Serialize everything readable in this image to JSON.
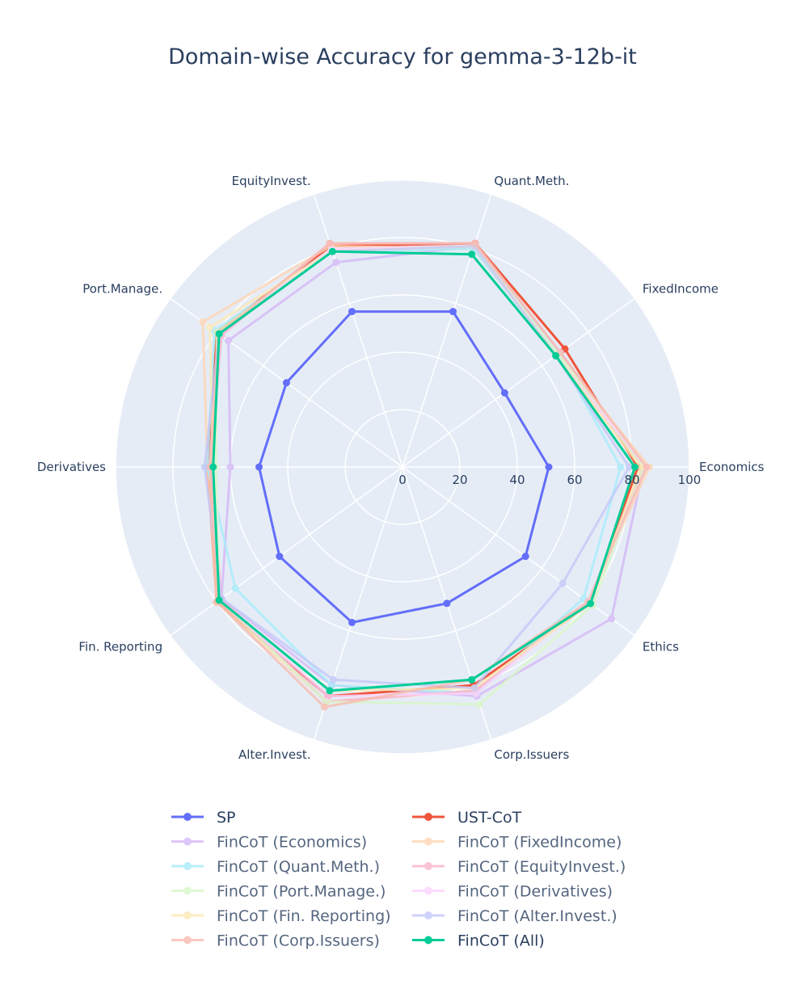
{
  "chart_data": {
    "type": "radar",
    "title": "Domain-wise Accuracy for gemma-3-12b-it",
    "categories": [
      "Economics",
      "FixedIncome",
      "Quant.Meth.",
      "EquityInvest.",
      "Port.Manage.",
      "Derivatives",
      "Fin. Reporting",
      "Alter.Invest.",
      "Corp.Issuers",
      "Ethics"
    ],
    "radial_range": [
      0,
      100
    ],
    "radial_ticks": [
      "0",
      "20",
      "40",
      "60",
      "80",
      "100"
    ],
    "legend_placement": "bottom",
    "series": [
      {
        "name": "SP",
        "color": "#636efa",
        "opacity": 1.0,
        "values": [
          51,
          44,
          57,
          57,
          50,
          50,
          53,
          57,
          50,
          53
        ]
      },
      {
        "name": "UST-CoT",
        "color": "#ef553b",
        "opacity": 1.0,
        "values": [
          82,
          70,
          82,
          81,
          80,
          68,
          80,
          84,
          80,
          81
        ]
      },
      {
        "name": "FinCoT (Economics)",
        "color": "#d6b8f7",
        "opacity": 0.8,
        "values": [
          84,
          68,
          81,
          75,
          75,
          60,
          78,
          80,
          84,
          90
        ]
      },
      {
        "name": "FinCoT (FixedIncome)",
        "color": "#ffd6b3",
        "opacity": 0.8,
        "values": [
          86,
          67,
          80,
          81,
          86,
          68,
          80,
          86,
          82,
          80
        ]
      },
      {
        "name": "FinCoT (Quant.Meth.)",
        "color": "#a8ecfb",
        "opacity": 0.8,
        "values": [
          76,
          67,
          80,
          79,
          81,
          68,
          72,
          80,
          83,
          78
        ]
      },
      {
        "name": "FinCoT (EquityInvest.)",
        "color": "#f9b3cd",
        "opacity": 0.8,
        "values": [
          84,
          66,
          82,
          82,
          78,
          67,
          78,
          86,
          82,
          80
        ]
      },
      {
        "name": "FinCoT (Port.Manage.)",
        "color": "#d9f7c9",
        "opacity": 0.8,
        "values": [
          84,
          67,
          81,
          80,
          80,
          65,
          79,
          86,
          87,
          82
        ]
      },
      {
        "name": "FinCoT (Derivatives)",
        "color": "#fcd3fc",
        "opacity": 0.8,
        "values": [
          85,
          66,
          81,
          80,
          79,
          66,
          79,
          84,
          83,
          80
        ]
      },
      {
        "name": "FinCoT (Fin. Reporting)",
        "color": "#fde9b5",
        "opacity": 0.8,
        "values": [
          83,
          66,
          81,
          79,
          83,
          66,
          79,
          82,
          81,
          81
        ]
      },
      {
        "name": "FinCoT (Alter.Invest.)",
        "color": "#c4c8f9",
        "opacity": 0.8,
        "values": [
          79,
          66,
          81,
          79,
          79,
          69,
          78,
          78,
          81,
          69
        ]
      },
      {
        "name": "FinCoT (Corp.Issuers)",
        "color": "#f8bcb0",
        "opacity": 0.8,
        "values": [
          85,
          68,
          82,
          82,
          79,
          67,
          80,
          88,
          78,
          80
        ]
      },
      {
        "name": "FinCoT (All)",
        "color": "#00cc96",
        "opacity": 1.0,
        "values": [
          81,
          66,
          78,
          79,
          79,
          66,
          79,
          82,
          78,
          81
        ]
      }
    ]
  }
}
